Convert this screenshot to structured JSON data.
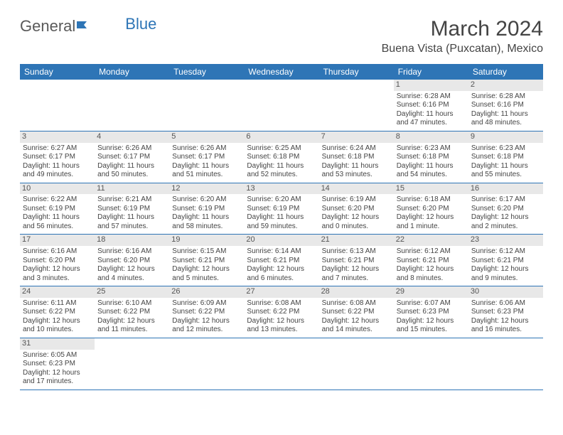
{
  "logo": {
    "part1": "General",
    "part2": "Blue"
  },
  "header": {
    "title": "March 2024",
    "location": "Buena Vista (Puxcatan), Mexico"
  },
  "colors": {
    "header_bg": "#2e75b6",
    "header_fg": "#ffffff",
    "daynum_bg": "#e8e8e8",
    "border": "#2e75b6",
    "text": "#444444"
  },
  "weekdays": [
    "Sunday",
    "Monday",
    "Tuesday",
    "Wednesday",
    "Thursday",
    "Friday",
    "Saturday"
  ],
  "weeks": [
    [
      null,
      null,
      null,
      null,
      null,
      {
        "n": "1",
        "sr": "Sunrise: 6:28 AM",
        "ss": "Sunset: 6:16 PM",
        "dl": "Daylight: 11 hours and 47 minutes."
      },
      {
        "n": "2",
        "sr": "Sunrise: 6:28 AM",
        "ss": "Sunset: 6:16 PM",
        "dl": "Daylight: 11 hours and 48 minutes."
      }
    ],
    [
      {
        "n": "3",
        "sr": "Sunrise: 6:27 AM",
        "ss": "Sunset: 6:17 PM",
        "dl": "Daylight: 11 hours and 49 minutes."
      },
      {
        "n": "4",
        "sr": "Sunrise: 6:26 AM",
        "ss": "Sunset: 6:17 PM",
        "dl": "Daylight: 11 hours and 50 minutes."
      },
      {
        "n": "5",
        "sr": "Sunrise: 6:26 AM",
        "ss": "Sunset: 6:17 PM",
        "dl": "Daylight: 11 hours and 51 minutes."
      },
      {
        "n": "6",
        "sr": "Sunrise: 6:25 AM",
        "ss": "Sunset: 6:18 PM",
        "dl": "Daylight: 11 hours and 52 minutes."
      },
      {
        "n": "7",
        "sr": "Sunrise: 6:24 AM",
        "ss": "Sunset: 6:18 PM",
        "dl": "Daylight: 11 hours and 53 minutes."
      },
      {
        "n": "8",
        "sr": "Sunrise: 6:23 AM",
        "ss": "Sunset: 6:18 PM",
        "dl": "Daylight: 11 hours and 54 minutes."
      },
      {
        "n": "9",
        "sr": "Sunrise: 6:23 AM",
        "ss": "Sunset: 6:18 PM",
        "dl": "Daylight: 11 hours and 55 minutes."
      }
    ],
    [
      {
        "n": "10",
        "sr": "Sunrise: 6:22 AM",
        "ss": "Sunset: 6:19 PM",
        "dl": "Daylight: 11 hours and 56 minutes."
      },
      {
        "n": "11",
        "sr": "Sunrise: 6:21 AM",
        "ss": "Sunset: 6:19 PM",
        "dl": "Daylight: 11 hours and 57 minutes."
      },
      {
        "n": "12",
        "sr": "Sunrise: 6:20 AM",
        "ss": "Sunset: 6:19 PM",
        "dl": "Daylight: 11 hours and 58 minutes."
      },
      {
        "n": "13",
        "sr": "Sunrise: 6:20 AM",
        "ss": "Sunset: 6:19 PM",
        "dl": "Daylight: 11 hours and 59 minutes."
      },
      {
        "n": "14",
        "sr": "Sunrise: 6:19 AM",
        "ss": "Sunset: 6:20 PM",
        "dl": "Daylight: 12 hours and 0 minutes."
      },
      {
        "n": "15",
        "sr": "Sunrise: 6:18 AM",
        "ss": "Sunset: 6:20 PM",
        "dl": "Daylight: 12 hours and 1 minute."
      },
      {
        "n": "16",
        "sr": "Sunrise: 6:17 AM",
        "ss": "Sunset: 6:20 PM",
        "dl": "Daylight: 12 hours and 2 minutes."
      }
    ],
    [
      {
        "n": "17",
        "sr": "Sunrise: 6:16 AM",
        "ss": "Sunset: 6:20 PM",
        "dl": "Daylight: 12 hours and 3 minutes."
      },
      {
        "n": "18",
        "sr": "Sunrise: 6:16 AM",
        "ss": "Sunset: 6:20 PM",
        "dl": "Daylight: 12 hours and 4 minutes."
      },
      {
        "n": "19",
        "sr": "Sunrise: 6:15 AM",
        "ss": "Sunset: 6:21 PM",
        "dl": "Daylight: 12 hours and 5 minutes."
      },
      {
        "n": "20",
        "sr": "Sunrise: 6:14 AM",
        "ss": "Sunset: 6:21 PM",
        "dl": "Daylight: 12 hours and 6 minutes."
      },
      {
        "n": "21",
        "sr": "Sunrise: 6:13 AM",
        "ss": "Sunset: 6:21 PM",
        "dl": "Daylight: 12 hours and 7 minutes."
      },
      {
        "n": "22",
        "sr": "Sunrise: 6:12 AM",
        "ss": "Sunset: 6:21 PM",
        "dl": "Daylight: 12 hours and 8 minutes."
      },
      {
        "n": "23",
        "sr": "Sunrise: 6:12 AM",
        "ss": "Sunset: 6:21 PM",
        "dl": "Daylight: 12 hours and 9 minutes."
      }
    ],
    [
      {
        "n": "24",
        "sr": "Sunrise: 6:11 AM",
        "ss": "Sunset: 6:22 PM",
        "dl": "Daylight: 12 hours and 10 minutes."
      },
      {
        "n": "25",
        "sr": "Sunrise: 6:10 AM",
        "ss": "Sunset: 6:22 PM",
        "dl": "Daylight: 12 hours and 11 minutes."
      },
      {
        "n": "26",
        "sr": "Sunrise: 6:09 AM",
        "ss": "Sunset: 6:22 PM",
        "dl": "Daylight: 12 hours and 12 minutes."
      },
      {
        "n": "27",
        "sr": "Sunrise: 6:08 AM",
        "ss": "Sunset: 6:22 PM",
        "dl": "Daylight: 12 hours and 13 minutes."
      },
      {
        "n": "28",
        "sr": "Sunrise: 6:08 AM",
        "ss": "Sunset: 6:22 PM",
        "dl": "Daylight: 12 hours and 14 minutes."
      },
      {
        "n": "29",
        "sr": "Sunrise: 6:07 AM",
        "ss": "Sunset: 6:23 PM",
        "dl": "Daylight: 12 hours and 15 minutes."
      },
      {
        "n": "30",
        "sr": "Sunrise: 6:06 AM",
        "ss": "Sunset: 6:23 PM",
        "dl": "Daylight: 12 hours and 16 minutes."
      }
    ],
    [
      {
        "n": "31",
        "sr": "Sunrise: 6:05 AM",
        "ss": "Sunset: 6:23 PM",
        "dl": "Daylight: 12 hours and 17 minutes."
      },
      null,
      null,
      null,
      null,
      null,
      null
    ]
  ]
}
